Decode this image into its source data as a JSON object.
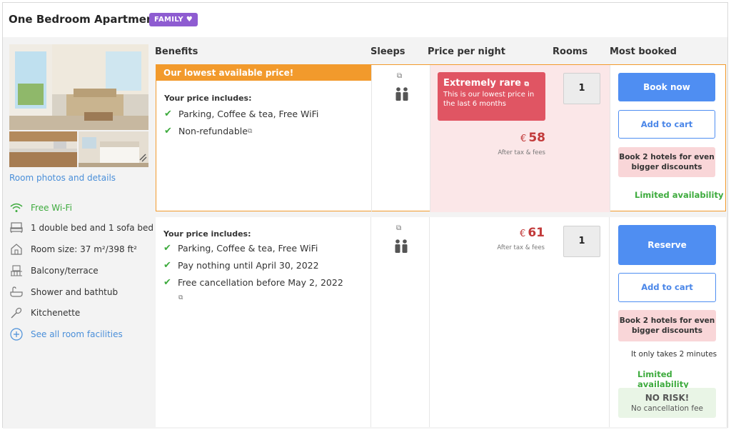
{
  "header": {
    "title": "One Bedroom Apartment",
    "badge": "FAMILY ♥"
  },
  "left": {
    "room_link": "Room photos and details",
    "facilities": [
      {
        "icon": "wifi-icon",
        "label": "Free Wi-Fi"
      },
      {
        "icon": "bed-icon",
        "label": "1 double bed and 1 sofa bed"
      },
      {
        "icon": "house-icon",
        "label": "Room size: 37 m²/398 ft²"
      },
      {
        "icon": "balcony-icon",
        "label": "Balcony/terrace"
      },
      {
        "icon": "bathtub-icon",
        "label": "Shower and bathtub"
      },
      {
        "icon": "kitchen-icon",
        "label": "Kitchenette"
      },
      {
        "icon": "plus-circle-icon",
        "label": "See all room facilities"
      }
    ]
  },
  "columns": [
    "Benefits",
    "Sleeps",
    "Price per night",
    "Rooms",
    "Most booked"
  ],
  "row1": {
    "lowest_label": "Our lowest available price!",
    "includes_title": "Your price includes:",
    "items": [
      "Parking, Coffee & tea, Free WiFi",
      "Non-refundable"
    ],
    "rare_title": "Extremely rare",
    "rare_text": "This is our lowest price in the last 6 months",
    "currency": "€",
    "price": "58",
    "after_tax": "After tax & fees",
    "rooms": "1",
    "book_label": "Book now",
    "cart_label": "Add to cart",
    "promo": "Book 2 hotels for even bigger discounts",
    "limited": "Limited availability"
  },
  "row2": {
    "includes_title": "Your price includes:",
    "items": [
      "Parking, Coffee & tea, Free WiFi",
      "Pay nothing until April 30, 2022",
      "Free cancellation before May 2, 2022"
    ],
    "currency": "€",
    "price": "61",
    "after_tax": "After tax & fees",
    "rooms": "1",
    "reserve_label": "Reserve",
    "cart_label": "Add to cart",
    "promo": "Book 2 hotels for even bigger discounts",
    "only": "It only takes 2 minutes",
    "limited": "Limited availability",
    "norisk_title": "NO RISK!",
    "norisk_sub": "No cancellation fee"
  },
  "colors": {
    "accent": "#4f8ef2",
    "orange": "#f29a2c",
    "green": "#3eab3e",
    "badge": "#8e5cd1",
    "rare": "#e05563"
  }
}
